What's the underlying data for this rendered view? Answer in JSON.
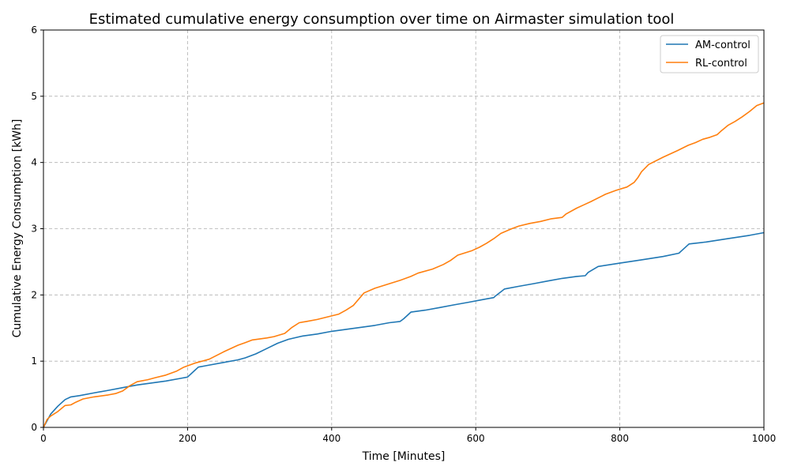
{
  "chart_data": {
    "type": "line",
    "title": "Estimated cumulative energy consumption over time on Airmaster simulation tool",
    "xlabel": "Time [Minutes]",
    "ylabel": "Cumulative Energy Consumption [kWh]",
    "xlim": [
      0,
      1000
    ],
    "ylim": [
      0,
      6
    ],
    "xticks": [
      0,
      200,
      400,
      600,
      800,
      1000
    ],
    "yticks": [
      0,
      1,
      2,
      3,
      4,
      5,
      6
    ],
    "grid": true,
    "legend": "top-right",
    "series": [
      {
        "name": "AM-control",
        "color": "#1f77b4",
        "x": [
          0,
          5,
          10,
          20,
          30,
          38,
          50,
          70,
          90,
          110,
          130,
          150,
          170,
          190,
          200,
          210,
          215,
          225,
          250,
          270,
          280,
          295,
          310,
          325,
          340,
          360,
          380,
          400,
          420,
          440,
          460,
          480,
          495,
          500,
          510,
          530,
          550,
          570,
          590,
          610,
          625,
          628,
          640,
          660,
          680,
          700,
          720,
          740,
          752,
          756,
          770,
          800,
          830,
          860,
          882,
          886,
          896,
          920,
          950,
          980,
          1000
        ],
        "y": [
          0.0,
          0.1,
          0.2,
          0.32,
          0.42,
          0.46,
          0.48,
          0.52,
          0.56,
          0.6,
          0.64,
          0.67,
          0.7,
          0.74,
          0.76,
          0.86,
          0.91,
          0.93,
          0.98,
          1.02,
          1.05,
          1.11,
          1.19,
          1.27,
          1.33,
          1.38,
          1.41,
          1.45,
          1.48,
          1.51,
          1.54,
          1.58,
          1.6,
          1.64,
          1.74,
          1.77,
          1.81,
          1.85,
          1.89,
          1.93,
          1.96,
          1.99,
          2.09,
          2.13,
          2.17,
          2.21,
          2.25,
          2.28,
          2.29,
          2.34,
          2.43,
          2.48,
          2.53,
          2.58,
          2.63,
          2.67,
          2.77,
          2.8,
          2.85,
          2.9,
          2.94
        ]
      },
      {
        "name": "RL-control",
        "color": "#ff7f0e",
        "x": [
          0,
          5,
          10,
          20,
          30,
          38,
          45,
          55,
          70,
          90,
          100,
          110,
          120,
          130,
          145,
          155,
          170,
          185,
          195,
          210,
          230,
          250,
          270,
          280,
          290,
          310,
          320,
          335,
          345,
          355,
          365,
          380,
          395,
          410,
          420,
          430,
          445,
          460,
          480,
          495,
          510,
          520,
          540,
          555,
          565,
          575,
          595,
          605,
          615,
          625,
          635,
          650,
          660,
          675,
          690,
          705,
          720,
          725,
          740,
          750,
          760,
          780,
          795,
          810,
          820,
          825,
          830,
          840,
          860,
          880,
          895,
          905,
          915,
          925,
          935,
          940,
          950,
          960,
          970,
          980,
          990,
          1000
        ],
        "y": [
          0.0,
          0.12,
          0.17,
          0.24,
          0.33,
          0.34,
          0.38,
          0.43,
          0.46,
          0.49,
          0.51,
          0.55,
          0.63,
          0.69,
          0.72,
          0.75,
          0.79,
          0.85,
          0.91,
          0.97,
          1.03,
          1.14,
          1.24,
          1.28,
          1.32,
          1.35,
          1.37,
          1.42,
          1.51,
          1.58,
          1.6,
          1.63,
          1.67,
          1.71,
          1.77,
          1.84,
          2.03,
          2.1,
          2.17,
          2.22,
          2.28,
          2.33,
          2.39,
          2.46,
          2.52,
          2.6,
          2.67,
          2.72,
          2.78,
          2.85,
          2.93,
          3.0,
          3.04,
          3.08,
          3.11,
          3.15,
          3.17,
          3.22,
          3.31,
          3.36,
          3.41,
          3.52,
          3.58,
          3.63,
          3.7,
          3.77,
          3.86,
          3.97,
          4.08,
          4.18,
          4.26,
          4.3,
          4.35,
          4.38,
          4.42,
          4.47,
          4.56,
          4.62,
          4.69,
          4.77,
          4.86,
          4.9
        ]
      }
    ]
  }
}
